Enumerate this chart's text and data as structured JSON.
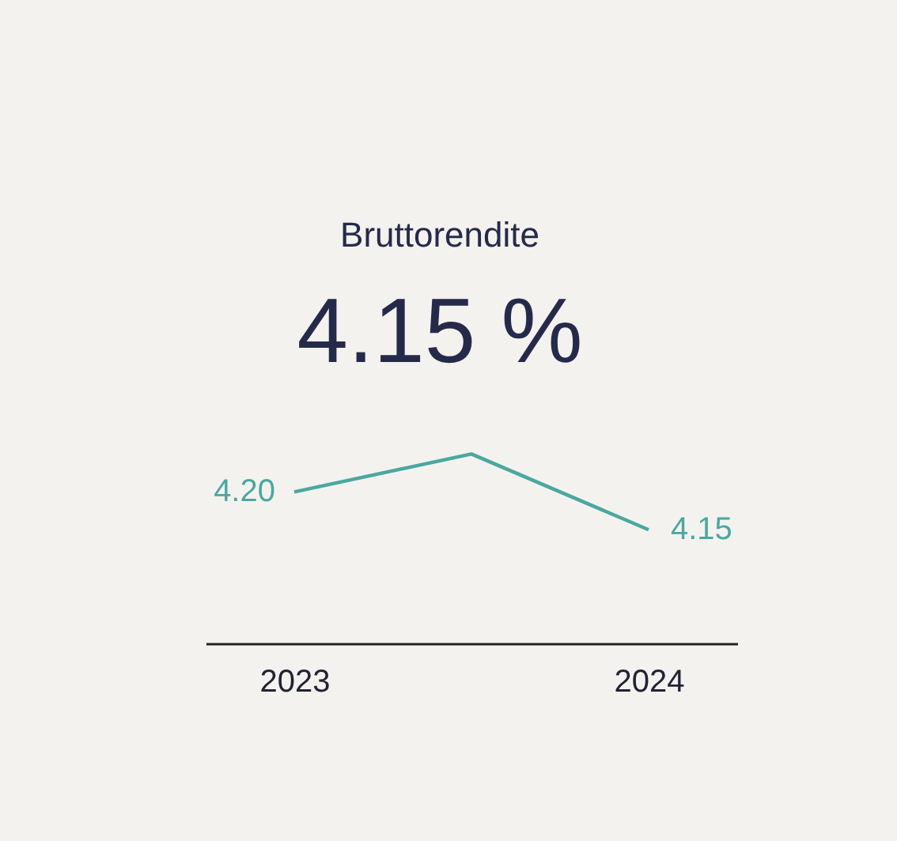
{
  "chart_data": {
    "type": "line",
    "title": "Bruttorendite",
    "subtitle": "4.15 %",
    "categories": [
      "2023",
      null,
      "2024"
    ],
    "series": [
      {
        "color": "#4aa8a0",
        "values": [
          4.2,
          4.25,
          4.15
        ],
        "value_labels": [
          "4.20",
          null,
          "4.15"
        ]
      }
    ],
    "marker": "none",
    "line_style": "solid"
  }
}
